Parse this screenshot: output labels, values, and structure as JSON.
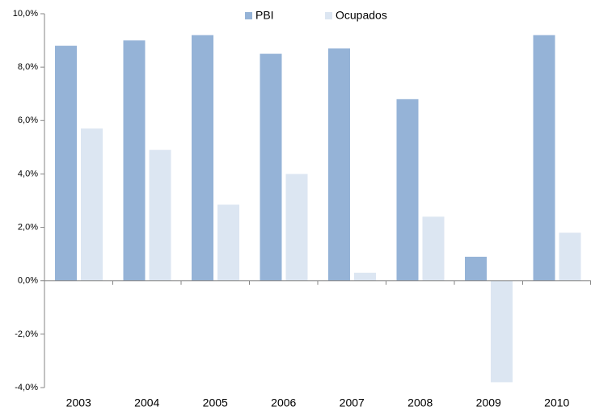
{
  "chart_data": {
    "type": "bar",
    "categories": [
      "2003",
      "2004",
      "2005",
      "2006",
      "2007",
      "2008",
      "2009",
      "2010"
    ],
    "series": [
      {
        "name": "PBI",
        "color": "#95b3d7",
        "values": [
          8.8,
          9.0,
          9.2,
          8.5,
          8.7,
          6.8,
          0.9,
          9.2
        ]
      },
      {
        "name": "Ocupados",
        "color": "#dce6f2",
        "values": [
          5.7,
          4.9,
          2.85,
          4.0,
          0.3,
          2.4,
          -3.8,
          1.8
        ]
      }
    ],
    "ylim": [
      -4,
      10
    ],
    "yticks": [
      {
        "value": -4,
        "label": "-4,0%"
      },
      {
        "value": -2,
        "label": "-2,0%"
      },
      {
        "value": 0,
        "label": "0,0%"
      },
      {
        "value": 2,
        "label": "2,0%"
      },
      {
        "value": 4,
        "label": "4,0%"
      },
      {
        "value": 6,
        "label": "6,0%"
      },
      {
        "value": 8,
        "label": "8,0%"
      },
      {
        "value": 10,
        "label": "10,0%"
      }
    ],
    "legend": "top"
  }
}
